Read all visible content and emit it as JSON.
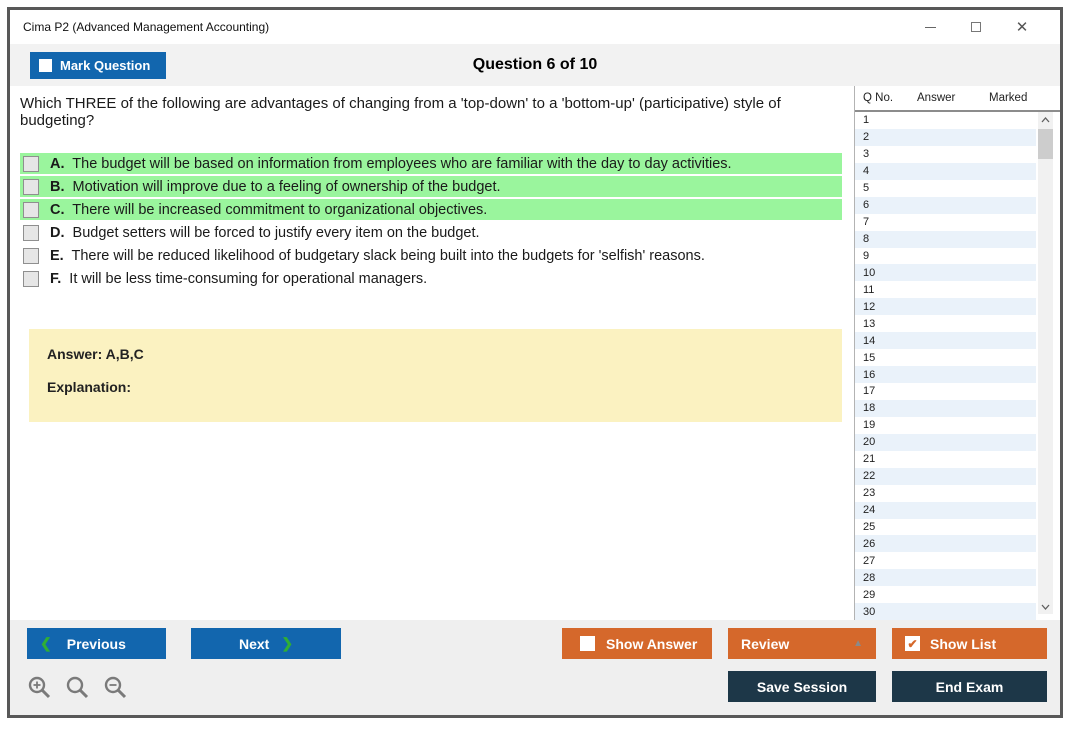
{
  "window": {
    "title": "Cima P2 (Advanced Management Accounting)"
  },
  "header": {
    "mark_question_label": "Mark Question",
    "question_counter": "Question 6 of 10"
  },
  "question": {
    "text": "Which THREE of the following are advantages of changing from a 'top-down' to a 'bottom-up' (participative) style of budgeting?",
    "options": [
      {
        "letter": "A.",
        "text": "The budget will be based on information from employees who are familiar with the day to day activities.",
        "highlighted": true,
        "checked": false
      },
      {
        "letter": "B.",
        "text": "Motivation will improve due to a feeling of ownership of the budget.",
        "highlighted": true,
        "checked": false
      },
      {
        "letter": "C.",
        "text": "There will be increased commitment to organizational objectives.",
        "highlighted": true,
        "checked": false
      },
      {
        "letter": "D.",
        "text": "Budget setters will be forced to justify every item on the budget.",
        "highlighted": false,
        "checked": false
      },
      {
        "letter": "E.",
        "text": "There will be reduced likelihood of budgetary slack being built into the budgets for 'selfish' reasons.",
        "highlighted": false,
        "checked": false
      },
      {
        "letter": "F.",
        "text": "It will be less time-consuming for operational managers.",
        "highlighted": false,
        "checked": false
      }
    ]
  },
  "answer_panel": {
    "answer_label": "Answer: A,B,C",
    "explanation_label": "Explanation:"
  },
  "sidebar": {
    "headers": {
      "qno": "Q No.",
      "answer": "Answer",
      "marked": "Marked"
    },
    "visible_rows": [
      "1",
      "2",
      "3",
      "4",
      "5",
      "6",
      "7",
      "8",
      "9",
      "10",
      "11",
      "12",
      "13",
      "14",
      "15",
      "16",
      "17",
      "18",
      "19",
      "20",
      "21",
      "22",
      "23",
      "24",
      "25",
      "26",
      "27",
      "28",
      "29",
      "30"
    ]
  },
  "footer": {
    "previous_label": "Previous",
    "next_label": "Next",
    "show_answer_label": "Show Answer",
    "review_label": "Review",
    "show_list_label": "Show List",
    "save_session_label": "Save Session",
    "end_exam_label": "End Exam"
  },
  "colors": {
    "accent_blue": "#1266ae",
    "accent_orange": "#d5682b",
    "accent_navy": "#1d3748",
    "highlight_green": "#9af59d",
    "answer_yellow": "#fbf2c1",
    "row_stripe_blue": "#eaf2fa",
    "chevron_green": "#2fae35"
  }
}
